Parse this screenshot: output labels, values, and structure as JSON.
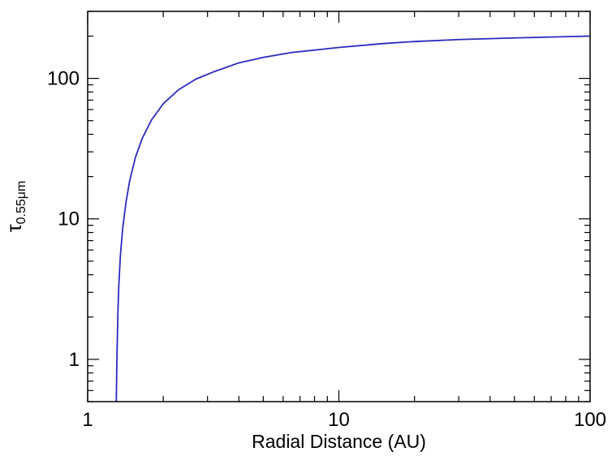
{
  "chart_data": {
    "type": "line",
    "title": "",
    "xlabel": "Radial Distance (AU)",
    "ylabel": "τ",
    "ylabel_subscript": "0.55μm",
    "xscale": "log",
    "yscale": "log",
    "xlim": [
      1,
      100
    ],
    "ylim": [
      0.5,
      300
    ],
    "grid": false,
    "legend": "none",
    "x_ticks": [
      {
        "value": 1,
        "label": "1"
      },
      {
        "value": 10,
        "label": "10"
      },
      {
        "value": 100,
        "label": "100"
      }
    ],
    "y_ticks": [
      {
        "value": 1,
        "label": "1"
      },
      {
        "value": 10,
        "label": "10"
      },
      {
        "value": 100,
        "label": "100"
      }
    ],
    "series": [
      {
        "color": "#2a2ac0",
        "x": [
          1.3,
          1.305,
          1.31,
          1.32,
          1.33,
          1.35,
          1.38,
          1.42,
          1.47,
          1.55,
          1.65,
          1.8,
          2.0,
          2.3,
          2.7,
          3.2,
          4.0,
          5.0,
          6.5,
          8.0,
          10,
          15,
          20,
          30,
          50,
          70,
          100
        ],
        "y": [
          0.5,
          0.8,
          1.2,
          2.2,
          3.3,
          5.5,
          8.7,
          13,
          18.7,
          27.5,
          37.5,
          51,
          66,
          83,
          99,
          112,
          129,
          141,
          153,
          159,
          166,
          177,
          183,
          189,
          194,
          197,
          200
        ]
      }
    ]
  }
}
